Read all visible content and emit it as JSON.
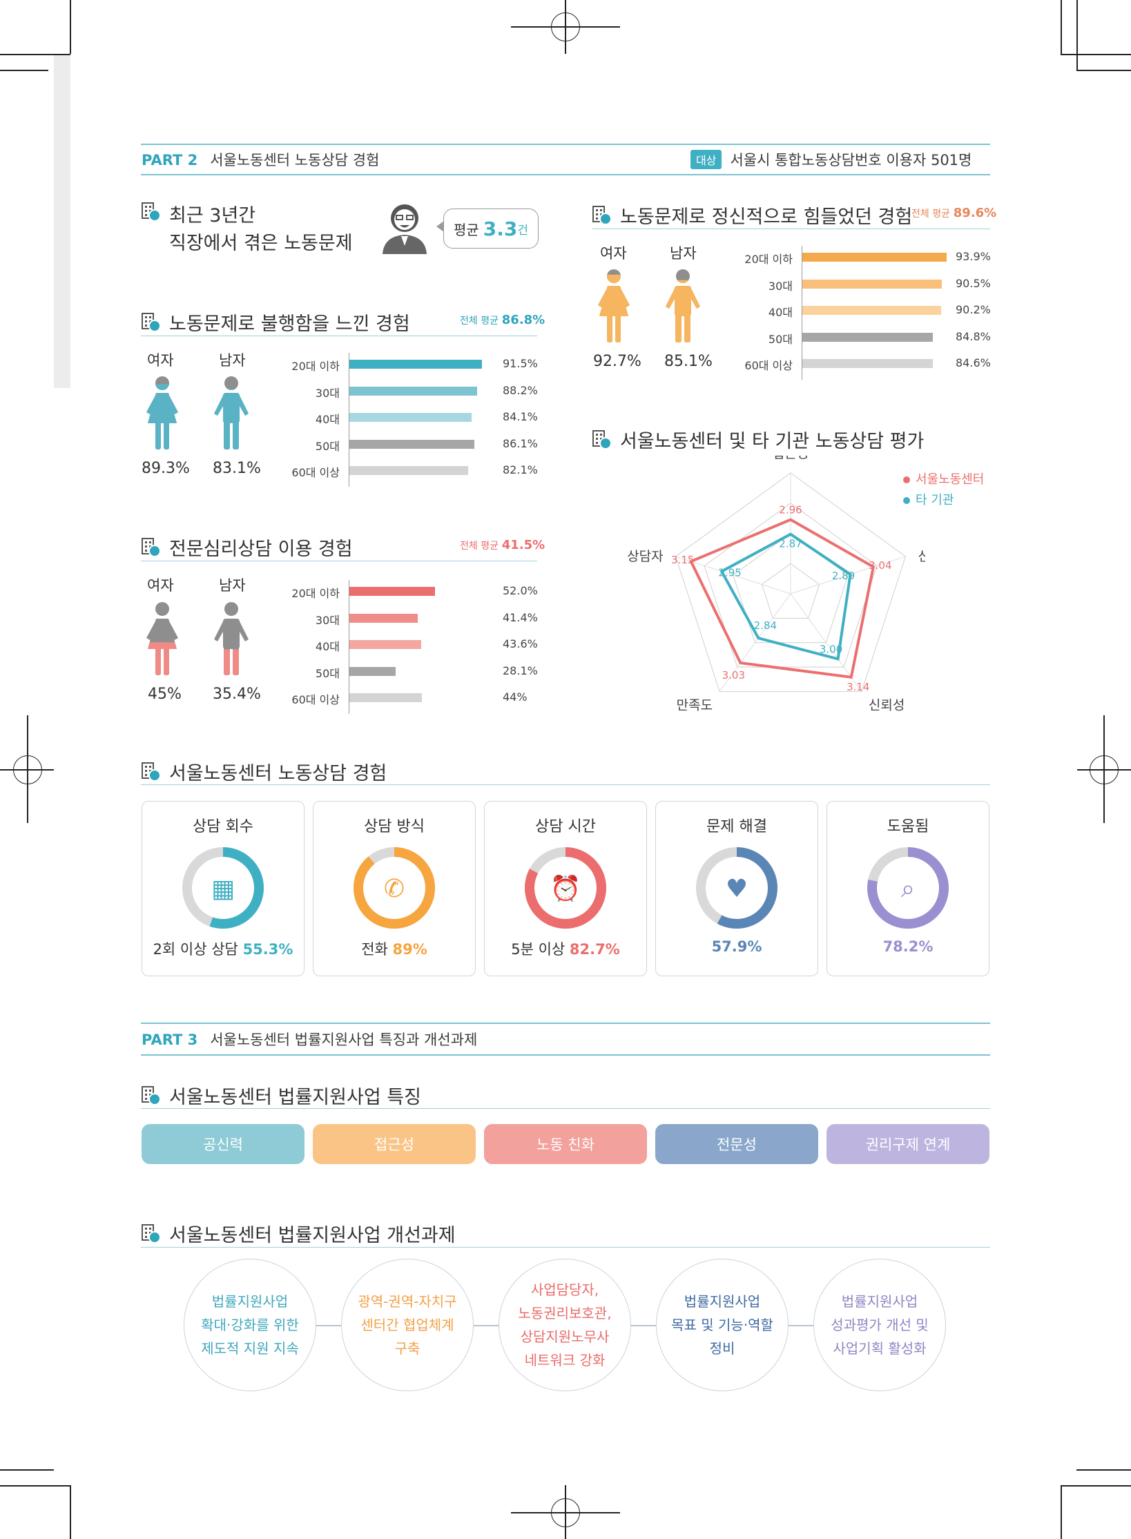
{
  "part2": {
    "label": "PART 2",
    "title": "서울노동센터 노동상담 경험",
    "target_badge": "대상",
    "target_text": "서울시 통합노동상담번호 이용자 501명"
  },
  "recent": {
    "line1": "최근 3년간",
    "line2": "직장에서 겪은 노동문제",
    "avg_label": "평균",
    "avg_value": "3.3",
    "avg_unit": "건"
  },
  "injustice": {
    "title": "노동문제로 불행함을 느낀 경험",
    "avg_label": "전체 평균",
    "avg_value": "86.8%",
    "female_label": "여자",
    "male_label": "남자",
    "female_pct": "89.3%",
    "male_pct": "83.1%",
    "female_fill": 0.893,
    "male_fill": 0.831,
    "color": "#5ab3c5",
    "bars": [
      {
        "label": "20대 이하",
        "value": 91.5,
        "text": "91.5%",
        "color": "#3fb0c3"
      },
      {
        "label": "30대",
        "value": 88.2,
        "text": "88.2%",
        "color": "#7dc3d1"
      },
      {
        "label": "40대",
        "value": 84.1,
        "text": "84.1%",
        "color": "#a7d8e1"
      },
      {
        "label": "50대",
        "value": 86.1,
        "text": "86.1%",
        "color": "#a6a6a6"
      },
      {
        "label": "60대 이상",
        "value": 82.1,
        "text": "82.1%",
        "color": "#d4d4d4"
      }
    ]
  },
  "mental": {
    "title": "노동문제로 정신적으로 힘들었던 경험",
    "avg_label": "전체 평균",
    "avg_value": "89.6%",
    "female_label": "여자",
    "male_label": "남자",
    "female_pct": "92.7%",
    "male_pct": "85.1%",
    "female_fill": 0.927,
    "male_fill": 0.851,
    "color": "#f6b55e",
    "bars": [
      {
        "label": "20대 이하",
        "value": 93.9,
        "text": "93.9%",
        "color": "#f4a94d"
      },
      {
        "label": "30대",
        "value": 90.5,
        "text": "90.5%",
        "color": "#f8c07a"
      },
      {
        "label": "40대",
        "value": 90.2,
        "text": "90.2%",
        "color": "#fbd19c"
      },
      {
        "label": "50대",
        "value": 84.8,
        "text": "84.8%",
        "color": "#a6a6a6"
      },
      {
        "label": "60대 이상",
        "value": 84.6,
        "text": "84.6%",
        "color": "#d4d4d4"
      }
    ]
  },
  "psych": {
    "title": "전문심리상담 이용 경험",
    "avg_label": "전체 평균",
    "avg_value": "41.5%",
    "female_label": "여자",
    "male_label": "남자",
    "female_pct": "45%",
    "male_pct": "35.4%",
    "female_fill": 0.45,
    "male_fill": 0.354,
    "color": "#ef8a86",
    "bars": [
      {
        "label": "20대 이하",
        "value": 52.0,
        "text": "52.0%",
        "color": "#ec6d6d"
      },
      {
        "label": "30대",
        "value": 41.4,
        "text": "41.4%",
        "color": "#f08d88"
      },
      {
        "label": "40대",
        "value": 43.6,
        "text": "43.6%",
        "color": "#f4a6a0"
      },
      {
        "label": "50대",
        "value": 28.1,
        "text": "28.1%",
        "color": "#a6a6a6"
      },
      {
        "label": "60대 이상",
        "value": 44,
        "text": "44%",
        "color": "#d4d4d4"
      }
    ]
  },
  "radar": {
    "title": "서울노동센터 및 타 기관 노동상담 평가",
    "axes": [
      "접근성",
      "신속·정확",
      "신뢰성",
      "만족도",
      "상담자"
    ],
    "series": [
      {
        "name": "서울노동센터",
        "color": "#ec6f6f",
        "values": [
          2.96,
          3.04,
          3.14,
          3.03,
          3.15
        ],
        "labels": [
          "2.96",
          "3.04",
          "3.14",
          "3.03",
          "3.15"
        ]
      },
      {
        "name": "타 기관",
        "color": "#3fb0c3",
        "values": [
          2.87,
          2.89,
          3.0,
          2.84,
          2.95
        ],
        "labels": [
          "2.87",
          "2.89",
          "3.00",
          "2.84",
          "2.95"
        ]
      }
    ]
  },
  "experience": {
    "title": "서울노동센터 노동상담 경험",
    "cards": [
      {
        "title": "상담 회수",
        "prefix": "2회 이상 상담 ",
        "value": "55.3%",
        "fraction": 0.553,
        "color": "#3fb0c3",
        "icon": "calendar-icon"
      },
      {
        "title": "상담 방식",
        "prefix": "전화 ",
        "value": "89%",
        "fraction": 0.89,
        "color": "#f6a53f",
        "icon": "phone-icon"
      },
      {
        "title": "상담 시간",
        "prefix": "5분 이상 ",
        "value": "82.7%",
        "fraction": 0.827,
        "color": "#ec6d6d",
        "icon": "alarm-clock-icon"
      },
      {
        "title": "문제 해결",
        "prefix": "",
        "value": "57.9%",
        "fraction": 0.579,
        "color": "#5a86b5",
        "icon": "heart-hand-icon"
      },
      {
        "title": "도움됨",
        "prefix": "",
        "value": "78.2%",
        "fraction": 0.782,
        "color": "#9a8fd0",
        "icon": "magnifier-icon"
      }
    ]
  },
  "part3": {
    "label": "PART 3",
    "title": "서울노동센터 법률지원사업 특징과 개선과제"
  },
  "features": {
    "title": "서울노동센터 법률지원사업 특징",
    "items": [
      {
        "label": "공신력",
        "color": "#8ecbd6"
      },
      {
        "label": "접근성",
        "color": "#fbc487"
      },
      {
        "label": "노동 친화",
        "color": "#f3a19c"
      },
      {
        "label": "전문성",
        "color": "#8aa7cb"
      },
      {
        "label": "권리구제 연계",
        "color": "#bdb5e0"
      }
    ]
  },
  "tasks": {
    "title": "서울노동센터 법률지원사업 개선과제",
    "items": [
      {
        "lines": [
          "법률지원사업",
          "확대·강화를 위한",
          "제도적 지원 지속"
        ],
        "color": "#3fa7bd"
      },
      {
        "lines": [
          "광역-권역-자치구",
          "센터간 협업체계",
          "구축"
        ],
        "color": "#f2a048"
      },
      {
        "lines": [
          "사업담당자,",
          "노동권리보호관,",
          "상담지원노무사",
          "네트워크 강화"
        ],
        "color": "#ea6a68"
      },
      {
        "lines": [
          "법률지원사업",
          "목표 및 기능·역할",
          "정비"
        ],
        "color": "#3f6aa2"
      },
      {
        "lines": [
          "법률지원사업",
          "성과평가 개선 및",
          "사업기획 활성화"
        ],
        "color": "#8e85c4"
      }
    ]
  }
}
